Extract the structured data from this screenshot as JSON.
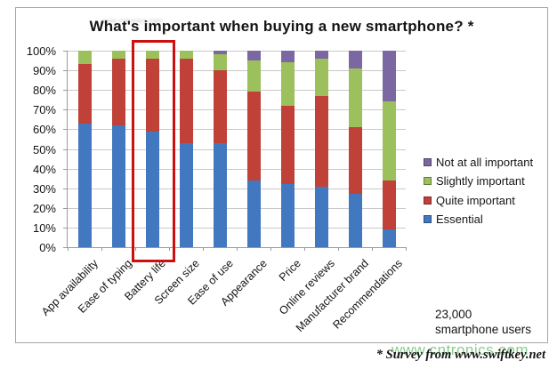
{
  "title": "What's important when buying a new smartphone? *",
  "title_watermark": "www.cntronics.com",
  "chart_data": {
    "type": "bar",
    "stacked": true,
    "units": "%",
    "title": "What's important when buying a new smartphone? *",
    "xlabel": "",
    "ylabel": "",
    "ylim": [
      0,
      100
    ],
    "grid": true,
    "legend_position": "right",
    "yticks": [
      "0%",
      "10%",
      "20%",
      "30%",
      "40%",
      "50%",
      "60%",
      "70%",
      "80%",
      "90%",
      "100%"
    ],
    "categories": [
      "App availability",
      "Ease of typing",
      "Battery life",
      "Screen size",
      "Ease of use",
      "Appearance",
      "Price",
      "Online reviews",
      "Manufacturer brand",
      "Recommendations"
    ],
    "series": [
      {
        "name": "Essential",
        "color": "#4178bf",
        "values": [
          63,
          62,
          59,
          53,
          53,
          34,
          32,
          31,
          27,
          9
        ]
      },
      {
        "name": "Quite important",
        "color": "#c04138",
        "values": [
          30,
          34,
          37,
          43,
          37,
          45,
          40,
          46,
          34,
          25
        ]
      },
      {
        "name": "Slightly important",
        "color": "#9cc15c",
        "values": [
          7,
          4,
          4,
          4,
          8,
          16,
          22,
          19,
          30,
          40
        ]
      },
      {
        "name": "Not at all important",
        "color": "#7b68a3",
        "values": [
          0,
          0,
          0,
          0,
          2,
          5,
          6,
          4,
          9,
          26
        ]
      }
    ],
    "legend_order": [
      "Not at all important",
      "Slightly important",
      "Quite important",
      "Essential"
    ],
    "highlight": {
      "category": "Battery life",
      "border_color": "#cc0f0f"
    }
  },
  "notes": {
    "sample_line1": "23,000",
    "sample_line2": "smartphone users"
  },
  "footnote": "* Survey from www.swiftkey.net",
  "watermark": "www.cntronics.com"
}
